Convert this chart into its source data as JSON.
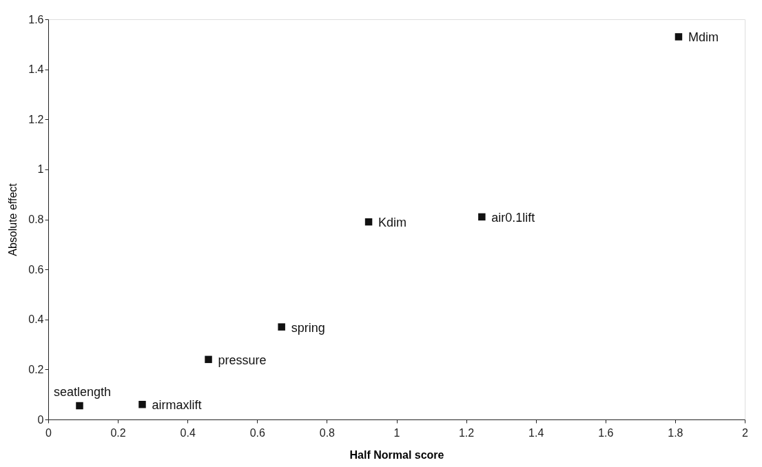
{
  "chart_data": {
    "type": "scatter",
    "xlabel": "Half Normal score",
    "ylabel": "Absolute effect",
    "x": [
      0.09,
      0.27,
      0.46,
      0.67,
      0.92,
      1.245,
      1.81
    ],
    "series": [
      {
        "color": "#111111",
        "values": [
          0.055,
          0.06,
          0.24,
          0.37,
          0.79,
          0.81,
          1.53
        ]
      }
    ],
    "annotations": [
      {
        "text": "seatlength",
        "x": 0.09,
        "y": 0.055
      },
      {
        "text": "airmaxlift",
        "x": 0.27,
        "y": 0.06
      },
      {
        "text": "pressure",
        "x": 0.46,
        "y": 0.24
      },
      {
        "text": "spring",
        "x": 0.67,
        "y": 0.37
      },
      {
        "text": "Kdim",
        "x": 0.92,
        "y": 0.79
      },
      {
        "text": "air0.1lift",
        "x": 1.245,
        "y": 0.81
      },
      {
        "text": "Mdim",
        "x": 1.81,
        "y": 1.53
      }
    ],
    "xlim": [
      0,
      2
    ],
    "xticks": [
      0,
      0.2,
      0.4,
      0.6,
      0.8,
      1,
      1.2,
      1.4,
      1.6,
      1.8,
      2
    ],
    "ylim": [
      0,
      1.6
    ],
    "yticks": [
      0,
      0.2,
      0.4,
      0.6,
      0.8,
      1,
      1.2,
      1.4,
      1.6
    ],
    "marker": "square",
    "grid": false
  }
}
